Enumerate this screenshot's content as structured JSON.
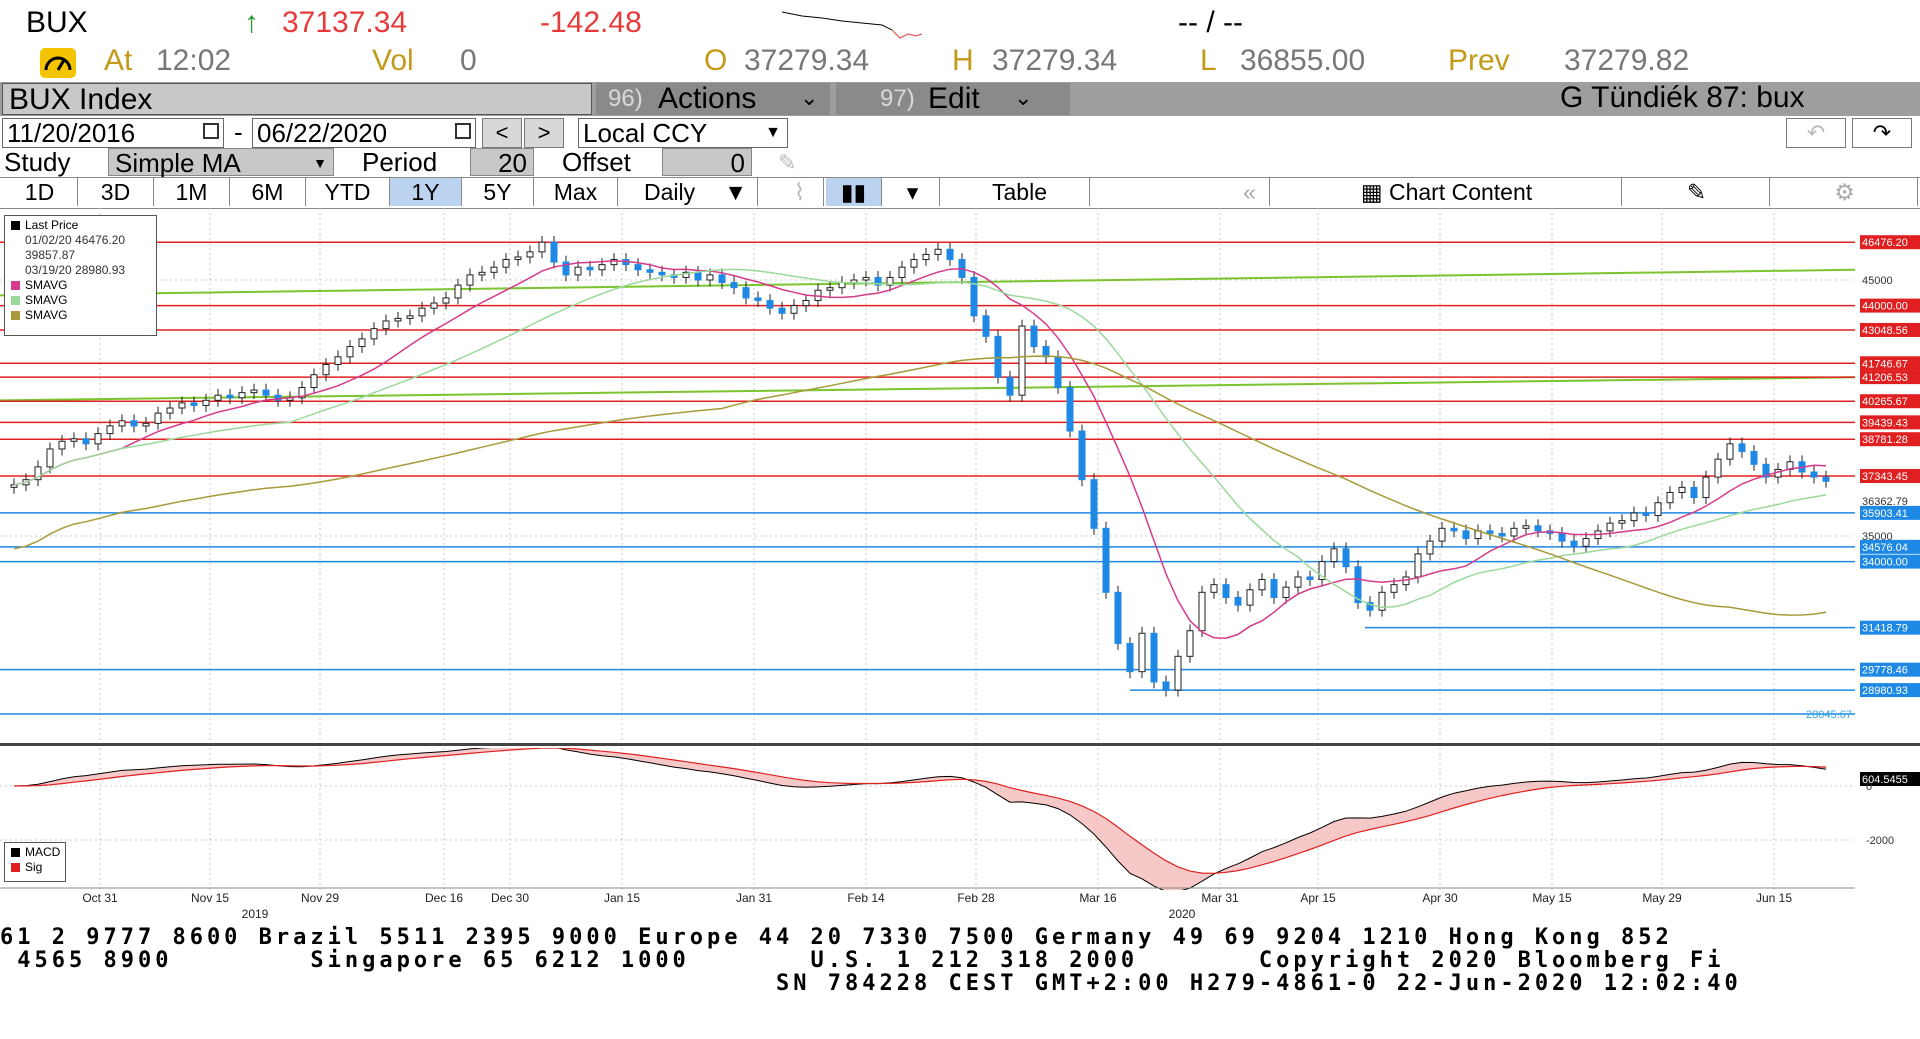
{
  "quote": {
    "ticker": "BUX",
    "arrow": "↑",
    "last": "37137.34",
    "change": "-142.48",
    "bidask": "-- / --",
    "at_label": "At",
    "time": "12:02",
    "vol_label": "Vol",
    "vol": "0",
    "open_label": "O",
    "open": "37279.34",
    "high_label": "H",
    "high": "37279.34",
    "low_label": "L",
    "low": "36855.00",
    "prev_label": "Prev",
    "prev": "37279.82"
  },
  "titlebar": {
    "security": "BUX Index",
    "actions_num": "96)",
    "actions": "Actions",
    "edit_num": "97)",
    "edit": "Edit",
    "page_title": "G Tündiék 87: bux"
  },
  "range": {
    "start": "11/20/2016",
    "sep": "-",
    "end": "06/22/2020",
    "prev_btn": "<",
    "next_btn": ">",
    "currency": "Local CCY"
  },
  "study": {
    "label": "Study",
    "value": "Simple MA",
    "period_label": "Period",
    "period": "20",
    "offset_label": "Offset",
    "offset": "0"
  },
  "periods": [
    "1D",
    "3D",
    "1M",
    "6M",
    "YTD",
    "1Y",
    "5Y",
    "Max"
  ],
  "active_period": "1Y",
  "frequency": "Daily",
  "toolbar": {
    "table": "Table",
    "chart_content": "Chart Content"
  },
  "legend": {
    "title": "Last Price",
    "high": "01/02/20 46476.20",
    "avg": "39857.87",
    "low": "03/19/20 28980.93",
    "ma1": "SMAVG",
    "ma2": "SMAVG",
    "ma3": "SMAVG",
    "macd": "MACD",
    "sig": "Sig"
  },
  "colors": {
    "up": "#ffffff",
    "down": "#1e88e5",
    "ma20": "#d63a8c",
    "ma50": "#9bd89b",
    "ma200": "#a89a3a",
    "resistance": "#e02020",
    "support": "#1e88e5",
    "trend": "#7bc42d",
    "macd": "#000000",
    "sig": "#e02020"
  },
  "chart_data": {
    "type": "candlestick",
    "price_axis_labels": [
      "46476.20",
      "45000",
      "44000.00",
      "43048.56",
      "41746.67",
      "41206.53",
      "40265.67",
      "39439.43",
      "38781.28",
      "37343.45",
      "36362.79",
      "35903.41",
      "35000",
      "34576.04",
      "34000.00",
      "31418.79",
      "29778.46",
      "28980.93",
      "28045.67"
    ],
    "resistance_levels": [
      46476.2,
      44000.0,
      43048.56,
      41746.67,
      41206.53,
      40265.67,
      39439.43,
      38781.28,
      37343.45
    ],
    "support_levels": [
      35903.41,
      34576.04,
      34000.0,
      31418.79,
      29778.46,
      28980.93,
      28045.67
    ],
    "x_tick_labels": [
      "Oct 31",
      "Nov 15",
      "Nov 29",
      "Dec 16",
      "Dec 30",
      "Jan 15",
      "Jan 31",
      "Feb 14",
      "Feb 28",
      "Mar 16",
      "Mar 31",
      "Apr 15",
      "Apr 30",
      "May 15",
      "May 29",
      "Jun 15"
    ],
    "year_labels": [
      "2019",
      "2020"
    ],
    "closes": [
      37000,
      37200,
      37700,
      38400,
      38700,
      38800,
      38600,
      39000,
      39300,
      39500,
      39300,
      39400,
      39800,
      40000,
      40200,
      40100,
      40300,
      40500,
      40400,
      40600,
      40700,
      40500,
      40300,
      40400,
      40800,
      41300,
      41700,
      42000,
      42400,
      42700,
      43100,
      43400,
      43500,
      43600,
      43900,
      44100,
      44300,
      44800,
      45200,
      45300,
      45500,
      45800,
      45900,
      46100,
      46476,
      45700,
      45200,
      45500,
      45400,
      45600,
      45800,
      45600,
      45400,
      45300,
      45200,
      45100,
      45300,
      45000,
      45200,
      44900,
      44700,
      44300,
      44200,
      43900,
      43700,
      44000,
      44200,
      44600,
      44700,
      44900,
      45000,
      45100,
      44800,
      45100,
      45500,
      45800,
      46000,
      46200,
      45800,
      45100,
      43600,
      42800,
      41200,
      40500,
      43200,
      42400,
      42000,
      40800,
      39100,
      37200,
      35300,
      32800,
      30800,
      29700,
      31200,
      29300,
      28980,
      30300,
      31300,
      32800,
      33100,
      32600,
      32300,
      32900,
      33300,
      32600,
      33000,
      33400,
      33300,
      34000,
      34500,
      33800,
      32400,
      32100,
      32800,
      33100,
      33400,
      34300,
      34800,
      35300,
      35200,
      34900,
      35200,
      35100,
      35000,
      35300,
      35400,
      35200,
      35100,
      34800,
      34600,
      34900,
      35200,
      35500,
      35600,
      35900,
      35800,
      36300,
      36700,
      36900,
      36500,
      37300,
      38000,
      38600,
      38300,
      37800,
      37300,
      37600,
      37900,
      37500,
      37300,
      37137
    ],
    "macd_axis_labels": [
      "604.5455",
      "0",
      "-2000"
    ]
  }
}
